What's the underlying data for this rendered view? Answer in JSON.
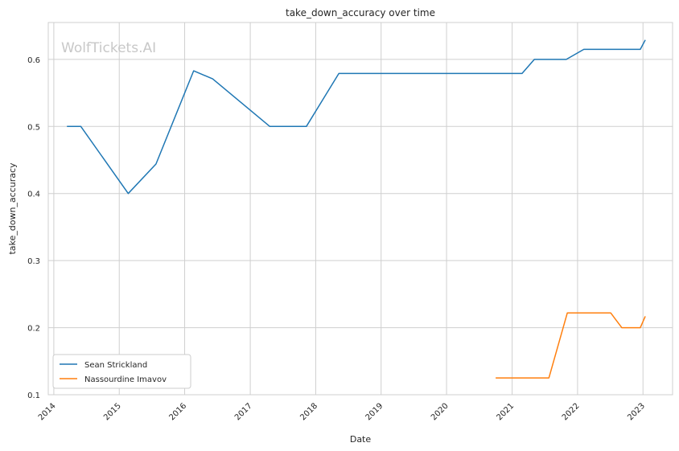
{
  "watermark": "WolfTickets.AI",
  "chart_data": {
    "type": "line",
    "title": "take_down_accuracy over time",
    "xlabel": "Date",
    "ylabel": "take_down_accuracy",
    "x_ticks": [
      "2014",
      "2015",
      "2016",
      "2017",
      "2018",
      "2019",
      "2020",
      "2021",
      "2022",
      "2023"
    ],
    "y_ticks": [
      "0.1",
      "0.2",
      "0.3",
      "0.4",
      "0.5",
      "0.6"
    ],
    "xlim": [
      "2013-12-01",
      "2023-06-15"
    ],
    "ylim": [
      0.1,
      0.655
    ],
    "grid": true,
    "legend_position": "lower-left",
    "series": [
      {
        "name": "Sean Strickland",
        "color": "#1f77b4",
        "points": [
          [
            "2014-03-15",
            0.5
          ],
          [
            "2014-06-01",
            0.5
          ],
          [
            "2015-02-20",
            0.4
          ],
          [
            "2015-07-25",
            0.444
          ],
          [
            "2016-02-20",
            0.583
          ],
          [
            "2016-06-05",
            0.571
          ],
          [
            "2017-04-20",
            0.5
          ],
          [
            "2017-11-10",
            0.5
          ],
          [
            "2018-05-10",
            0.579
          ],
          [
            "2021-02-25",
            0.579
          ],
          [
            "2021-05-05",
            0.6
          ],
          [
            "2021-10-30",
            0.6
          ],
          [
            "2022-02-05",
            0.615
          ],
          [
            "2022-12-17",
            0.615
          ],
          [
            "2023-01-14",
            0.629
          ]
        ]
      },
      {
        "name": "Nassourdine Imavov",
        "color": "#ff7f0e",
        "points": [
          [
            "2020-10-01",
            0.125
          ],
          [
            "2021-07-25",
            0.125
          ],
          [
            "2021-11-05",
            0.222
          ],
          [
            "2022-07-05",
            0.222
          ],
          [
            "2022-09-05",
            0.2
          ],
          [
            "2022-12-17",
            0.2
          ],
          [
            "2023-01-14",
            0.217
          ]
        ]
      }
    ]
  }
}
